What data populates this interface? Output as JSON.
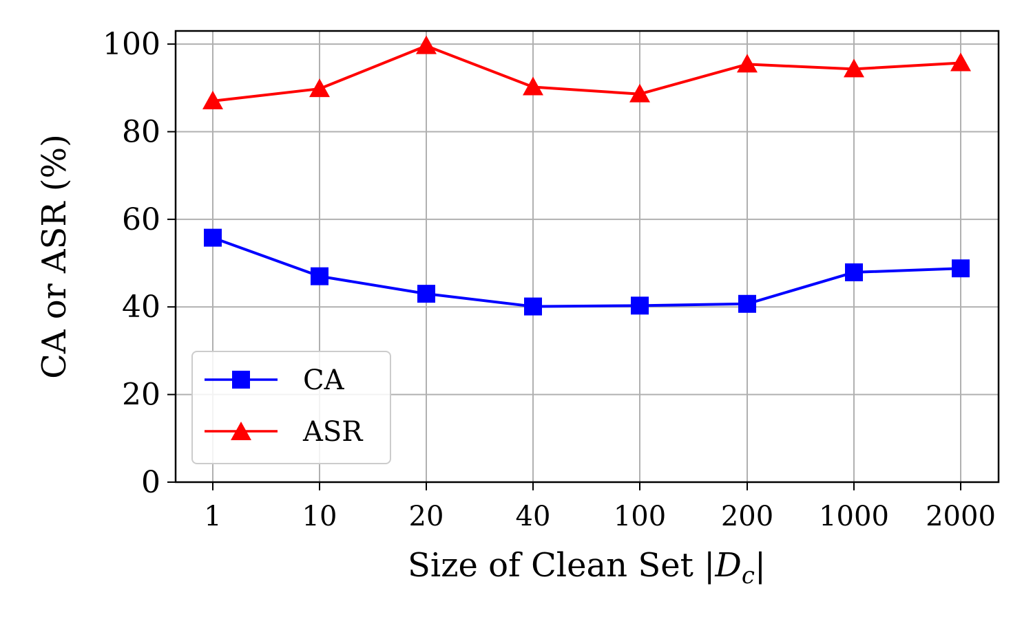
{
  "chart_data": {
    "type": "line",
    "title": "",
    "xlabel": "Size of Clean Set |D_c|",
    "ylabel": "CA or ASR (%)",
    "categories": [
      "1",
      "10",
      "20",
      "40",
      "100",
      "200",
      "1000",
      "2000"
    ],
    "ylim": [
      0,
      103
    ],
    "yticks": [
      0,
      20,
      40,
      60,
      80,
      100
    ],
    "grid": true,
    "legend_position": "lower-left",
    "series": [
      {
        "name": "CA",
        "color": "#0000ff",
        "marker": "square",
        "values": [
          55.8,
          47.0,
          43.0,
          40.1,
          40.3,
          40.7,
          47.9,
          48.8
        ]
      },
      {
        "name": "ASR",
        "color": "#ff0000",
        "marker": "triangle",
        "values": [
          87.0,
          89.8,
          99.6,
          90.2,
          88.6,
          95.4,
          94.3,
          95.7
        ]
      }
    ]
  }
}
